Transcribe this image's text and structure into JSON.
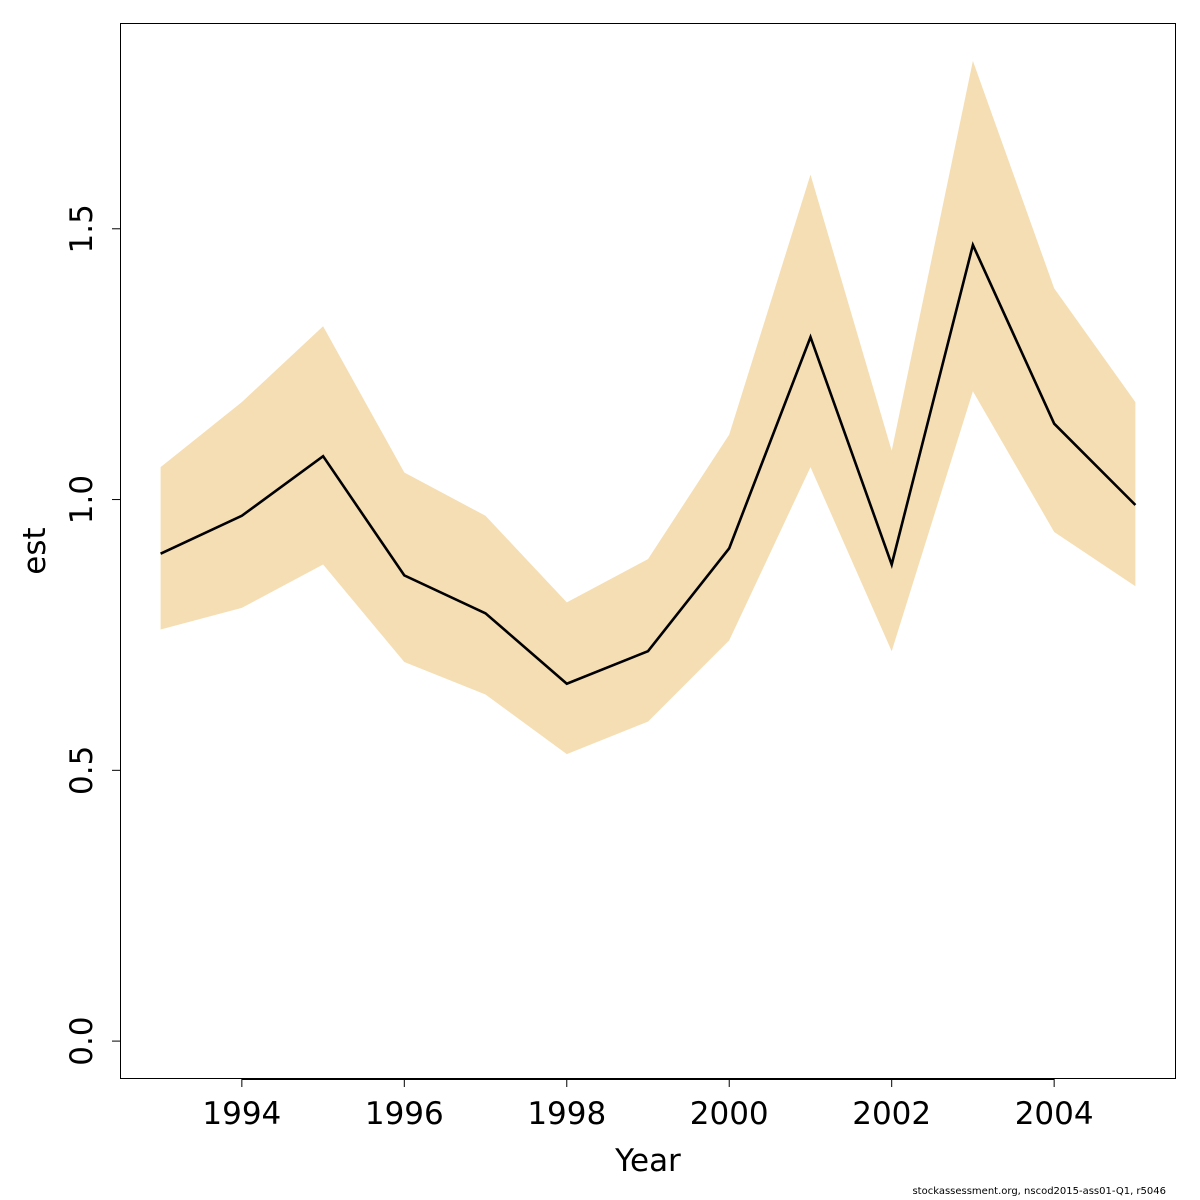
{
  "chart_data": {
    "type": "line",
    "xlabel": "Year",
    "ylabel": "est",
    "xlim": [
      1992.5,
      2005.5
    ],
    "ylim": [
      -0.07,
      1.88
    ],
    "x_ticks": [
      1994,
      1996,
      1998,
      2000,
      2002,
      2004
    ],
    "x_tick_labels": [
      "1994",
      "1996",
      "1998",
      "2000",
      "2002",
      "2004"
    ],
    "y_ticks": [
      0.0,
      0.5,
      1.0,
      1.5
    ],
    "y_tick_labels": [
      "0.0",
      "0.5",
      "1.0",
      "1.5"
    ],
    "grid": false,
    "x": [
      1993,
      1994,
      1995,
      1996,
      1997,
      1998,
      1999,
      2000,
      2001,
      2002,
      2003,
      2004,
      2005
    ],
    "series": [
      {
        "values": [
          0.9,
          0.97,
          1.08,
          0.86,
          0.79,
          0.66,
          0.72,
          0.91,
          1.3,
          0.88,
          1.47,
          1.14,
          0.99
        ],
        "lower": [
          0.76,
          0.8,
          0.88,
          0.7,
          0.64,
          0.53,
          0.59,
          0.74,
          1.06,
          0.72,
          1.2,
          0.94,
          0.84
        ],
        "upper": [
          1.06,
          1.18,
          1.32,
          1.05,
          0.97,
          0.81,
          0.89,
          1.12,
          1.6,
          1.09,
          1.81,
          1.39,
          1.18
        ],
        "line_color": "#000000",
        "band_color": "#F5DEB3"
      }
    ]
  },
  "footer": "stockassessment.org, nscod2015-ass01-Q1, r5046"
}
